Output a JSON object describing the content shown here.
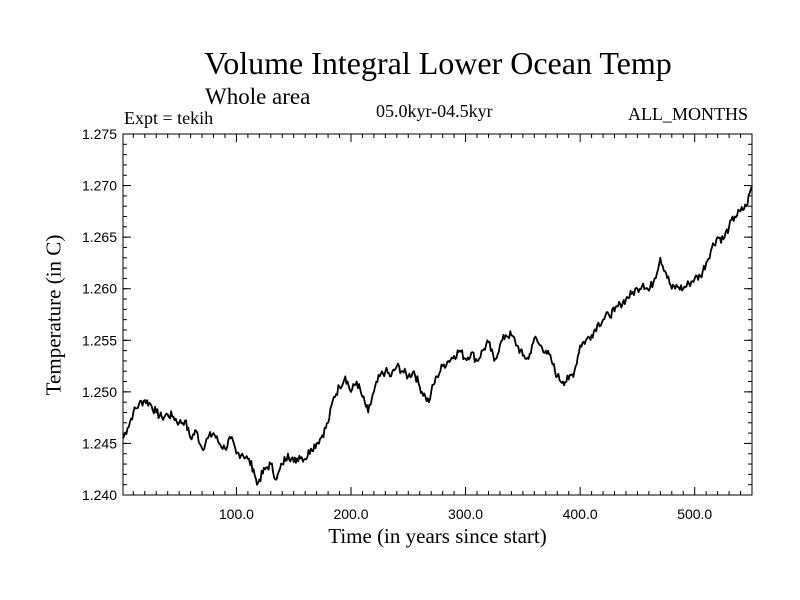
{
  "chart_data": {
    "type": "line",
    "title": "Volume Integral Lower Ocean Temp",
    "subtitle": "Whole area",
    "experiment": "Expt = tekih",
    "period": "05.0kyr-04.5kyr",
    "months": "ALL_MONTHS",
    "xlabel": "Time (in years since start)",
    "ylabel": "Temperature (in C)",
    "xlim": [
      1,
      550
    ],
    "ylim": [
      1.24,
      1.275
    ],
    "xticks": [
      100,
      200,
      300,
      400,
      500
    ],
    "xtick_labels": [
      "100.0",
      "200.0",
      "300.0",
      "400.0",
      "500.0"
    ],
    "yticks": [
      1.24,
      1.245,
      1.25,
      1.255,
      1.26,
      1.265,
      1.27,
      1.275
    ],
    "ytick_labels": [
      "1.240",
      "1.245",
      "1.250",
      "1.255",
      "1.260",
      "1.265",
      "1.270",
      "1.275"
    ],
    "grid": false,
    "series": [
      {
        "name": "Temperature",
        "x": [
          1,
          5,
          10,
          15,
          20,
          25,
          30,
          35,
          40,
          45,
          50,
          55,
          60,
          65,
          70,
          75,
          80,
          85,
          90,
          95,
          100,
          105,
          110,
          115,
          118,
          120,
          125,
          130,
          135,
          140,
          145,
          150,
          155,
          160,
          165,
          170,
          175,
          180,
          185,
          190,
          195,
          200,
          205,
          210,
          215,
          220,
          225,
          230,
          235,
          240,
          245,
          250,
          255,
          260,
          265,
          268,
          270,
          275,
          280,
          285,
          290,
          295,
          300,
          305,
          310,
          315,
          320,
          325,
          330,
          335,
          340,
          345,
          350,
          355,
          358,
          360,
          365,
          370,
          375,
          380,
          385,
          390,
          395,
          400,
          405,
          410,
          415,
          420,
          425,
          430,
          435,
          440,
          445,
          450,
          455,
          460,
          465,
          470,
          475,
          480,
          485,
          490,
          495,
          500,
          505,
          510,
          515,
          520,
          525,
          530,
          535,
          540,
          545,
          550
        ],
        "values": [
          1.2455,
          1.2465,
          1.248,
          1.2488,
          1.2492,
          1.2488,
          1.248,
          1.2475,
          1.2478,
          1.2476,
          1.247,
          1.2472,
          1.2455,
          1.2462,
          1.2445,
          1.2455,
          1.246,
          1.245,
          1.2445,
          1.2455,
          1.244,
          1.244,
          1.2435,
          1.2425,
          1.241,
          1.2415,
          1.2425,
          1.243,
          1.2415,
          1.243,
          1.244,
          1.2432,
          1.2438,
          1.2435,
          1.2445,
          1.245,
          1.2458,
          1.247,
          1.2495,
          1.2505,
          1.2515,
          1.25,
          1.251,
          1.2495,
          1.248,
          1.25,
          1.2515,
          1.252,
          1.2515,
          1.2525,
          1.252,
          1.2515,
          1.252,
          1.2505,
          1.2495,
          1.249,
          1.25,
          1.2515,
          1.2525,
          1.253,
          1.2535,
          1.254,
          1.2532,
          1.2538,
          1.253,
          1.254,
          1.2548,
          1.253,
          1.2545,
          1.2555,
          1.2555,
          1.2545,
          1.2535,
          1.2532,
          1.2545,
          1.2552,
          1.2545,
          1.254,
          1.253,
          1.2515,
          1.251,
          1.2512,
          1.252,
          1.2545,
          1.255,
          1.2555,
          1.2565,
          1.257,
          1.2575,
          1.2578,
          1.2585,
          1.259,
          1.2595,
          1.26,
          1.2605,
          1.2598,
          1.261,
          1.263,
          1.2615,
          1.26,
          1.2602,
          1.26,
          1.2605,
          1.261,
          1.2612,
          1.2625,
          1.264,
          1.265,
          1.2648,
          1.266,
          1.267,
          1.2675,
          1.268,
          1.27
        ]
      }
    ]
  }
}
